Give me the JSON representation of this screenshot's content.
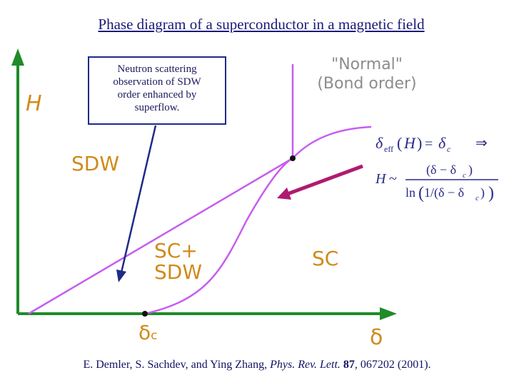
{
  "title": "Phase diagram of a superconductor in a magnetic field",
  "callout": {
    "lines": [
      "Neutron scattering",
      "observation of SDW",
      "order enhanced by",
      "superflow."
    ]
  },
  "regions": {
    "sdw": "SDW",
    "sc_sdw_line1": "SC+",
    "sc_sdw_line2": "SDW",
    "sc": "SC",
    "normal_line1": "\"Normal\"",
    "normal_line2": "(Bond order)"
  },
  "axes": {
    "y_label": "H",
    "x_label": "δ",
    "x_tick": "δc"
  },
  "equation": {
    "line1_lhs": "δeff(H) = δc",
    "arrow": "⇒",
    "line2": "H ~ (δ − δc) / ln(1/(δ − δc))"
  },
  "citation": {
    "authors": "E. Demler, S. Sachdev, and Ying Zhang,",
    "journal": "Phys. Rev. Lett.",
    "volume": "87",
    "rest": ", 067202 (2001)."
  },
  "colors": {
    "axis": "#1e8c28",
    "phase_line": "#c75cf0",
    "region_text": "#d08a1a",
    "callout_border": "#1e2a86",
    "arrow": "#b01a70",
    "title": "#1a1a7a"
  }
}
